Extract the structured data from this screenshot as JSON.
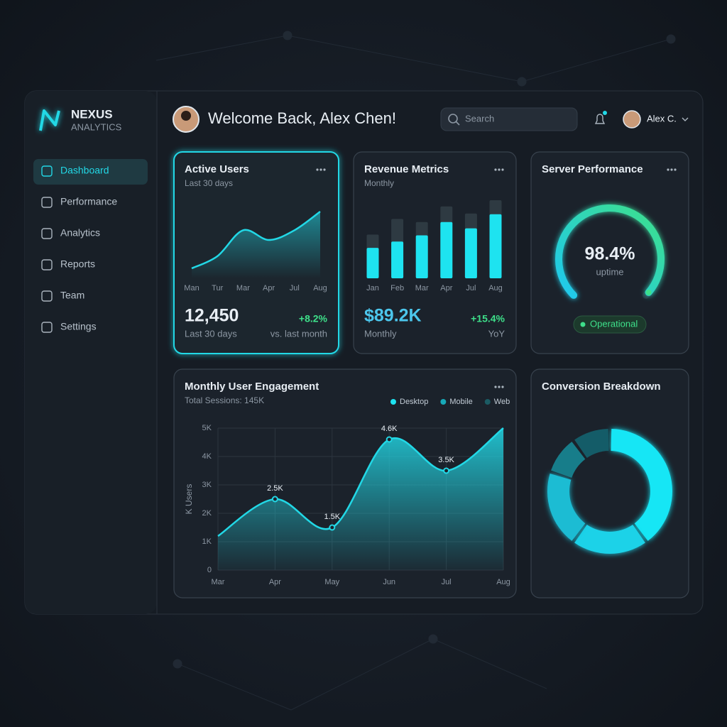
{
  "brand": {
    "name": "NEXUS",
    "tagline": "ANALYTICS"
  },
  "nav": [
    "Dashboard",
    "Performance",
    "Analytics",
    "Reports",
    "Team",
    "Settings"
  ],
  "header": {
    "welcome": "Welcome Back, Alex Chen!",
    "search_placeholder": "Search",
    "user": "Alex C."
  },
  "cards": {
    "active_users": {
      "title": "Active Users",
      "subtitle": "Last 30 days",
      "chart_data": {
        "type": "line",
        "categories": [
          "Man",
          "Tur",
          "Mar",
          "Apr",
          "Jul",
          "Aug"
        ],
        "values": [
          15,
          30,
          62,
          50,
          62,
          85
        ],
        "color": "#22d8e6"
      },
      "stat": "12,450",
      "stat_caption": "Last 30 days",
      "change": "+8.2%",
      "change_caption": "vs. last month"
    },
    "revenue": {
      "title": "Revenue Metrics",
      "subtitle": "Monthly",
      "chart_data": {
        "type": "bar",
        "categories": [
          "Jan",
          "Feb",
          "Mar",
          "Apr",
          "Jul",
          "Aug"
        ],
        "series": [
          {
            "color": "#2e3a42",
            "values": [
              56,
              76,
              72,
              92,
              83,
              100
            ]
          },
          {
            "color": "#1ee3f0",
            "values": [
              39,
              47,
              55,
              72,
              64,
              82
            ]
          }
        ]
      },
      "stat": "$89.2K",
      "stat_caption": "Monthly",
      "change": "+15.4%",
      "change_caption": "YoY"
    },
    "server": {
      "title": "Server Performance",
      "chart_data": {
        "type": "gauge",
        "value": 98.4,
        "value_label": "98.4%",
        "ylim": [
          0,
          100
        ],
        "color": "#22d8e6"
      },
      "caption": "uptime",
      "status": "Operational"
    },
    "engagement": {
      "title": "Monthly User Engagement",
      "subtitle": "Total Sessions: 145K",
      "legend": [
        {
          "name": "Desktop",
          "color": "#1ee3f0"
        },
        {
          "name": "Mobile",
          "color": "#17a9b8"
        },
        {
          "name": "Web",
          "color": "#1b5b63"
        }
      ],
      "chart_data": {
        "type": "area",
        "y_label": "K Users",
        "categories": [
          "Mar",
          "Apr",
          "May",
          "Jun",
          "Jul",
          "Aug"
        ],
        "values": [
          1.2,
          2.5,
          1.5,
          4.6,
          3.5,
          5.0
        ],
        "value_labels": [
          null,
          "2.5K",
          "1.5K",
          "4.6K",
          "3.5K",
          null
        ],
        "color": "#22d8e6",
        "ylim": [
          0,
          5
        ],
        "yticks": [
          0,
          {
            "value": 1,
            "label": "1K"
          },
          {
            "value": 2,
            "label": "2K"
          },
          {
            "value": 3,
            "label": "3K"
          },
          {
            "value": 4,
            "label": "4K"
          },
          {
            "value": 5,
            "label": "5K"
          }
        ],
        "grid": true
      }
    },
    "conversion": {
      "title": "Conversion Breakdown",
      "chart_data": {
        "type": "donut",
        "values": [
          40,
          20,
          20,
          10,
          10
        ],
        "colors": [
          "#19e6f5",
          "#1fd2e8",
          "#1bbcd3",
          "#177d8a",
          "#145c68"
        ]
      }
    }
  }
}
